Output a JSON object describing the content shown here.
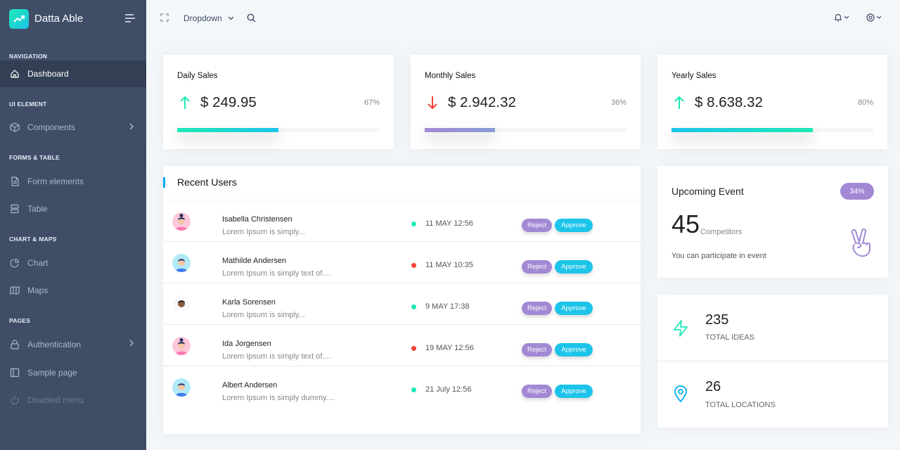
{
  "brand": {
    "name": "Datta Able"
  },
  "sidebar": {
    "sections": [
      {
        "caption": "NAVIGATION",
        "items": [
          {
            "label": "Dashboard",
            "icon": "home-icon",
            "active": true
          }
        ]
      },
      {
        "caption": "UI ELEMENT",
        "items": [
          {
            "label": "Components",
            "icon": "box-icon",
            "has_arrow": true
          }
        ]
      },
      {
        "caption": "FORMS & TABLE",
        "items": [
          {
            "label": "Form elements",
            "icon": "file-text-icon"
          },
          {
            "label": "Table",
            "icon": "server-icon"
          }
        ]
      },
      {
        "caption": "CHART & MAPS",
        "items": [
          {
            "label": "Chart",
            "icon": "pie-chart-icon"
          },
          {
            "label": "Maps",
            "icon": "map-icon"
          }
        ]
      },
      {
        "caption": "PAGES",
        "items": [
          {
            "label": "Authentication",
            "icon": "lock-icon",
            "has_arrow": true
          },
          {
            "label": "Sample page",
            "icon": "sidebar-icon"
          },
          {
            "label": "Disabled menu",
            "icon": "power-icon",
            "disabled": true
          }
        ]
      }
    ]
  },
  "header": {
    "dropdown_label": "Dropdown"
  },
  "stats": [
    {
      "title": "Daily Sales",
      "value": "$ 249.95",
      "percent": "67%",
      "progress": 0.5,
      "trend": "up",
      "bar_colors": [
        "#1de9b6",
        "#1dc4e9"
      ]
    },
    {
      "title": "Monthly Sales",
      "value": "$ 2.942.32",
      "percent": "36%",
      "progress": 0.35,
      "trend": "down",
      "bar_colors": [
        "#a389d4",
        "#899ed4"
      ]
    },
    {
      "title": "Yearly Sales",
      "value": "$ 8.638.32",
      "percent": "80%",
      "progress": 0.7,
      "trend": "up",
      "bar_colors": [
        "#1dc4e9",
        "#1de9b6"
      ]
    }
  ],
  "recent_users": {
    "title": "Recent Users",
    "reject_label": "Reject",
    "approve_label": "Approve",
    "rows": [
      {
        "name": "Isabella Christensen",
        "desc": "Lorem Ipsum is simply...",
        "date": "11 MAY 12:56",
        "status": "green",
        "avatar": "female"
      },
      {
        "name": "Mathilde Andersen",
        "desc": "Lorem Ipsum is simply text of....",
        "date": "11 MAY 10:35",
        "status": "red",
        "avatar": "male"
      },
      {
        "name": "Karla Sorensen",
        "desc": "Lorem Ipsum is simply...",
        "date": "9 MAY 17:38",
        "status": "green",
        "avatar": "female-dark"
      },
      {
        "name": "Ida Jorgensen",
        "desc": "Lorem Ipsum is simply text of....",
        "date": "19 MAY 12:56",
        "status": "red",
        "avatar": "female"
      },
      {
        "name": "Albert Andersen",
        "desc": "Lorem Ipsum is simply dummy....",
        "date": "21 July 12:56",
        "status": "green",
        "avatar": "male"
      }
    ]
  },
  "event": {
    "title": "Upcoming Event",
    "badge": "34%",
    "count": "45",
    "count_label": "Competitors",
    "subtitle": "You can participate in event"
  },
  "ideas": {
    "value": "235",
    "label": "TOTAL IDEAS"
  },
  "locations": {
    "value": "26",
    "label": "TOTAL LOCATIONS"
  },
  "colors": {
    "sidebar": "#3f4d67",
    "green": "#1de9b6",
    "blue": "#1dc4e9",
    "purple": "#a389d4",
    "red": "#f44236"
  }
}
